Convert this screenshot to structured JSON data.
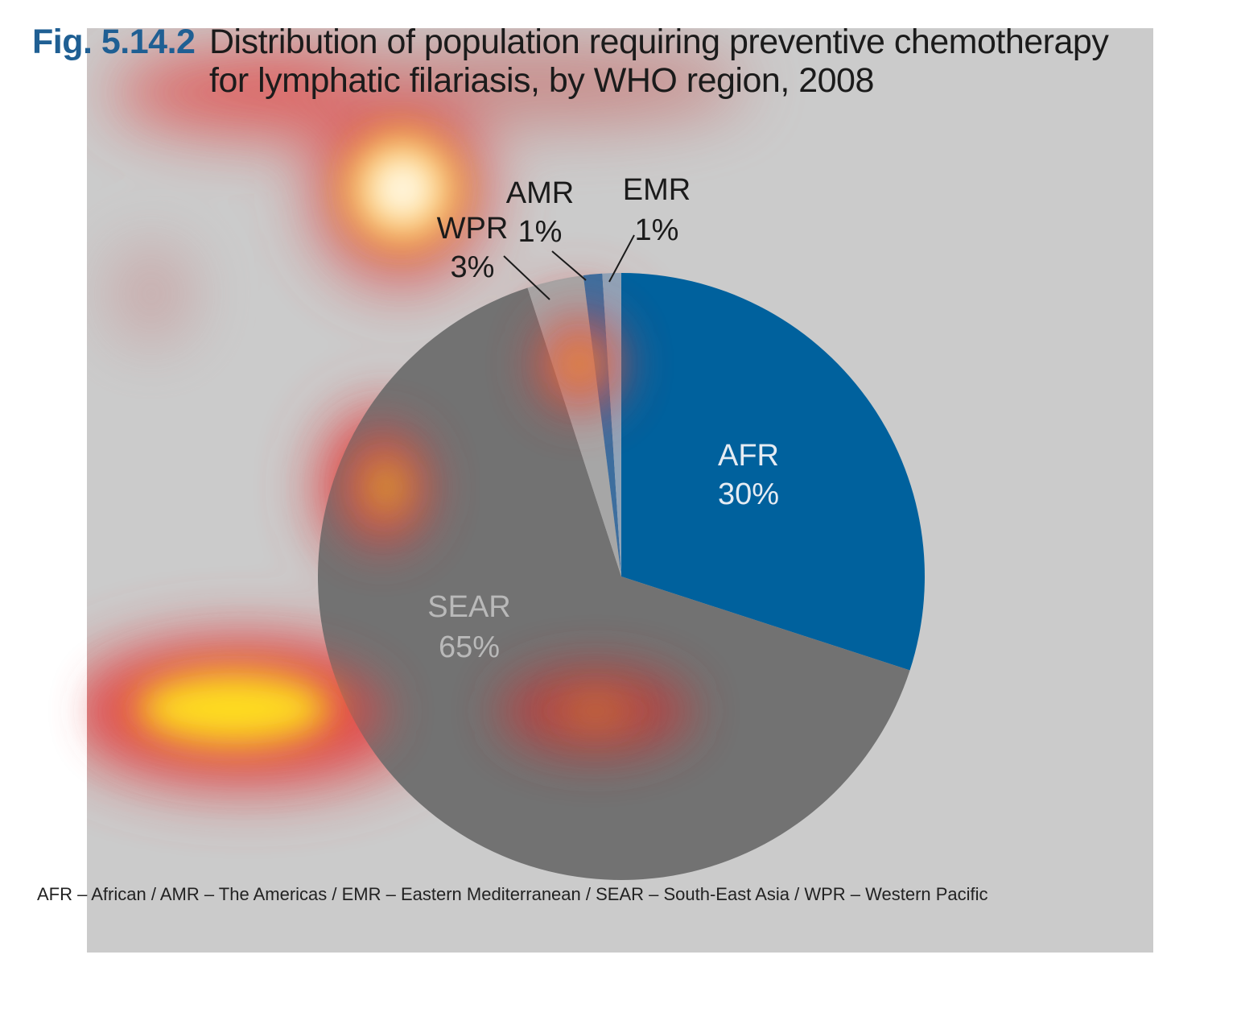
{
  "figure": {
    "number": "Fig. 5.14.2",
    "title_line1": "Distribution of population requiring preventive chemotherapy",
    "title_line2": "for lymphatic filariasis, by WHO region, 2008"
  },
  "chart_data": {
    "type": "pie",
    "title": "Distribution of population requiring preventive chemotherapy for lymphatic filariasis, by WHO region, 2008",
    "slices": [
      {
        "label": "AFR",
        "value_label": "30%",
        "value": 30,
        "color": "#00619d"
      },
      {
        "label": "SEAR",
        "value_label": "65%",
        "value": 65,
        "color": "#727272"
      },
      {
        "label": "WPR",
        "value_label": "3%",
        "value": 3,
        "color": "#a6a6a6"
      },
      {
        "label": "AMR",
        "value_label": "1%",
        "value": 1,
        "color": "#3d6e9e"
      },
      {
        "label": "EMR",
        "value_label": "1%",
        "value": 1,
        "color": "#8fa3b8"
      }
    ]
  },
  "footnote": "AFR – African / AMR – The Americas / EMR – Eastern Mediterranean / SEAR – South-East Asia / WPR – Western Pacific",
  "colors": {
    "panel_background": "#cbcbcb",
    "figure_number": "#1f5f93"
  }
}
